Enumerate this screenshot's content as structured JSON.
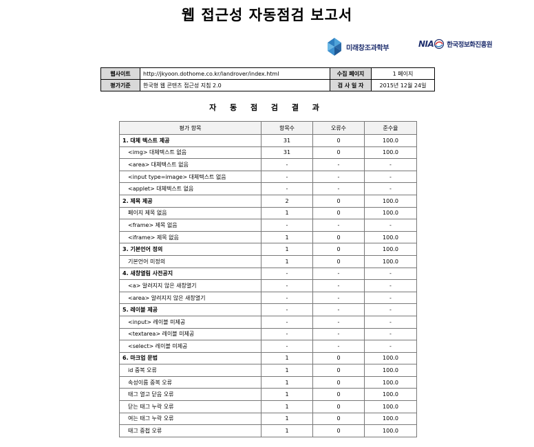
{
  "title": "웹 접근성 자동점검 보고서",
  "logos": {
    "msit": "미래창조과학부",
    "nia_mark": "NIA",
    "nia": "한국정보화진흥원"
  },
  "info": {
    "site_label": "웹사이트",
    "site_value": "http://jkyoon.dothome.co.kr/landrover/index.html",
    "pages_label": "수집 페이지",
    "pages_value": "1 페이지",
    "criteria_label": "평가기준",
    "criteria_value": "한국형 웹 콘텐츠 접근성 지침 2.0",
    "date_label": "검 사 일 자",
    "date_value": "2015년 12월 24일"
  },
  "section_title": "자 동 점 검 결 과",
  "results": {
    "headers": [
      "평가 항목",
      "항목수",
      "오류수",
      "준수율"
    ],
    "rows": [
      {
        "type": "cat",
        "name": "1. 대체 텍스트 제공",
        "count": "31",
        "errors": "0",
        "rate": "100.0"
      },
      {
        "type": "sub",
        "name": "<img> 대체텍스트 없음",
        "count": "31",
        "errors": "0",
        "rate": "100.0"
      },
      {
        "type": "sub",
        "name": "<area> 대체텍스트 없음",
        "count": "-",
        "errors": "-",
        "rate": "-"
      },
      {
        "type": "sub",
        "name": "<input type=image> 대체텍스트 없음",
        "count": "-",
        "errors": "-",
        "rate": "-"
      },
      {
        "type": "sub",
        "name": "<applet> 대체텍스트 없음",
        "count": "-",
        "errors": "-",
        "rate": "-"
      },
      {
        "type": "cat",
        "name": "2. 제목 제공",
        "count": "2",
        "errors": "0",
        "rate": "100.0"
      },
      {
        "type": "sub",
        "name": "페이지 제목 없음",
        "count": "1",
        "errors": "0",
        "rate": "100.0"
      },
      {
        "type": "sub",
        "name": "<frame> 제목 없음",
        "count": "-",
        "errors": "-",
        "rate": "-"
      },
      {
        "type": "sub",
        "name": "<iframe> 제목 없음",
        "count": "1",
        "errors": "0",
        "rate": "100.0"
      },
      {
        "type": "cat",
        "name": "3. 기본언어 정의",
        "count": "1",
        "errors": "0",
        "rate": "100.0"
      },
      {
        "type": "sub",
        "name": "기본언어 미정의",
        "count": "1",
        "errors": "0",
        "rate": "100.0"
      },
      {
        "type": "cat",
        "name": "4. 새창열림 사전공지",
        "count": "-",
        "errors": "-",
        "rate": "-"
      },
      {
        "type": "sub",
        "name": "<a> 알려지지 않은 새창열기",
        "count": "-",
        "errors": "-",
        "rate": "-"
      },
      {
        "type": "sub",
        "name": "<area> 알려지지 않은 새창열기",
        "count": "-",
        "errors": "-",
        "rate": "-"
      },
      {
        "type": "cat",
        "name": "5. 레이블 제공",
        "count": "-",
        "errors": "-",
        "rate": "-"
      },
      {
        "type": "sub",
        "name": "<input> 레이블 미제공",
        "count": "-",
        "errors": "-",
        "rate": "-"
      },
      {
        "type": "sub",
        "name": "<textarea> 레이블 미제공",
        "count": "-",
        "errors": "-",
        "rate": "-"
      },
      {
        "type": "sub",
        "name": "<select> 레이블 미제공",
        "count": "-",
        "errors": "-",
        "rate": "-"
      },
      {
        "type": "cat",
        "name": "6. 마크업 문법",
        "count": "1",
        "errors": "0",
        "rate": "100.0"
      },
      {
        "type": "sub",
        "name": "id 중복 오류",
        "count": "1",
        "errors": "0",
        "rate": "100.0"
      },
      {
        "type": "sub",
        "name": "속성이름 중복 오류",
        "count": "1",
        "errors": "0",
        "rate": "100.0"
      },
      {
        "type": "sub",
        "name": "태그 열고 닫음 오류",
        "count": "1",
        "errors": "0",
        "rate": "100.0"
      },
      {
        "type": "sub",
        "name": "닫는 태그 누락 오류",
        "count": "1",
        "errors": "0",
        "rate": "100.0"
      },
      {
        "type": "sub",
        "name": "여는 태그 누락 오류",
        "count": "1",
        "errors": "0",
        "rate": "100.0"
      },
      {
        "type": "sub",
        "name": "태그 중첩 오류",
        "count": "1",
        "errors": "0",
        "rate": "100.0"
      }
    ]
  }
}
